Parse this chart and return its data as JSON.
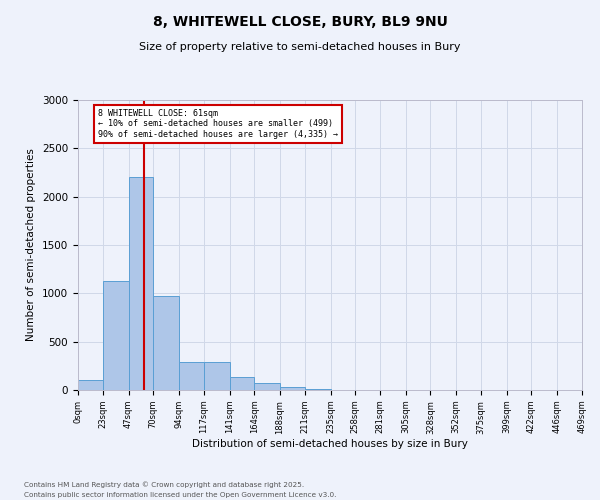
{
  "title_line1": "8, WHITEWELL CLOSE, BURY, BL9 9NU",
  "title_line2": "Size of property relative to semi-detached houses in Bury",
  "xlabel": "Distribution of semi-detached houses by size in Bury",
  "ylabel": "Number of semi-detached properties",
  "footnote1": "Contains HM Land Registry data © Crown copyright and database right 2025.",
  "footnote2": "Contains public sector information licensed under the Open Government Licence v3.0.",
  "annotation_title": "8 WHITEWELL CLOSE: 61sqm",
  "annotation_line2": "← 10% of semi-detached houses are smaller (499)",
  "annotation_line3": "90% of semi-detached houses are larger (4,335) →",
  "property_size": 61,
  "bin_edges": [
    0,
    23,
    47,
    70,
    94,
    117,
    141,
    164,
    188,
    211,
    235,
    258,
    281,
    305,
    328,
    352,
    375,
    399,
    422,
    446,
    469
  ],
  "bar_heights": [
    100,
    1130,
    2200,
    970,
    290,
    290,
    130,
    75,
    30,
    10,
    5,
    5,
    0,
    0,
    0,
    0,
    0,
    0,
    0,
    0
  ],
  "bar_color": "#aec6e8",
  "bar_edge_color": "#5a9fd4",
  "vline_color": "#cc0000",
  "vline_x": 61,
  "ylim": [
    0,
    3000
  ],
  "yticks": [
    0,
    500,
    1000,
    1500,
    2000,
    2500,
    3000
  ],
  "grid_color": "#d0d8e8",
  "background_color": "#eef2fb",
  "annotation_box_color": "#ffffff",
  "annotation_box_edge": "#cc0000",
  "tick_labels": [
    "0sqm",
    "23sqm",
    "47sqm",
    "70sqm",
    "94sqm",
    "117sqm",
    "141sqm",
    "164sqm",
    "188sqm",
    "211sqm",
    "235sqm",
    "258sqm",
    "281sqm",
    "305sqm",
    "328sqm",
    "352sqm",
    "375sqm",
    "399sqm",
    "422sqm",
    "446sqm",
    "469sqm"
  ]
}
